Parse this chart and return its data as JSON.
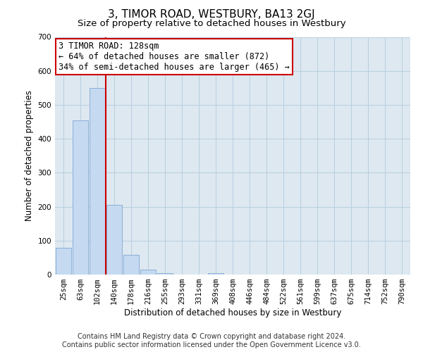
{
  "title": "3, TIMOR ROAD, WESTBURY, BA13 2GJ",
  "subtitle": "Size of property relative to detached houses in Westbury",
  "xlabel": "Distribution of detached houses by size in Westbury",
  "ylabel": "Number of detached properties",
  "categories": [
    "25sqm",
    "63sqm",
    "102sqm",
    "140sqm",
    "178sqm",
    "216sqm",
    "255sqm",
    "293sqm",
    "331sqm",
    "369sqm",
    "408sqm",
    "446sqm",
    "484sqm",
    "522sqm",
    "561sqm",
    "599sqm",
    "637sqm",
    "675sqm",
    "714sqm",
    "752sqm",
    "790sqm"
  ],
  "values": [
    78,
    455,
    550,
    205,
    58,
    15,
    5,
    0,
    0,
    5,
    0,
    0,
    0,
    0,
    0,
    0,
    0,
    0,
    0,
    0,
    0
  ],
  "bar_color": "#c5d9f1",
  "bar_edge_color": "#7fa7d4",
  "vline_index": 2.5,
  "vline_color": "#cc0000",
  "annotation_text": "3 TIMOR ROAD: 128sqm\n← 64% of detached houses are smaller (872)\n34% of semi-detached houses are larger (465) →",
  "annotation_box_color": "#ffffff",
  "annotation_box_edge": "#cc0000",
  "ylim": [
    0,
    700
  ],
  "yticks": [
    0,
    100,
    200,
    300,
    400,
    500,
    600,
    700
  ],
  "footer_line1": "Contains HM Land Registry data © Crown copyright and database right 2024.",
  "footer_line2": "Contains public sector information licensed under the Open Government Licence v3.0.",
  "background_color": "#ffffff",
  "plot_bg_color": "#dde8f0",
  "grid_color": "#b8cfe0",
  "title_fontsize": 11,
  "subtitle_fontsize": 9.5,
  "axis_label_fontsize": 8.5,
  "tick_fontsize": 7.5,
  "annotation_fontsize": 8.5,
  "footer_fontsize": 7
}
